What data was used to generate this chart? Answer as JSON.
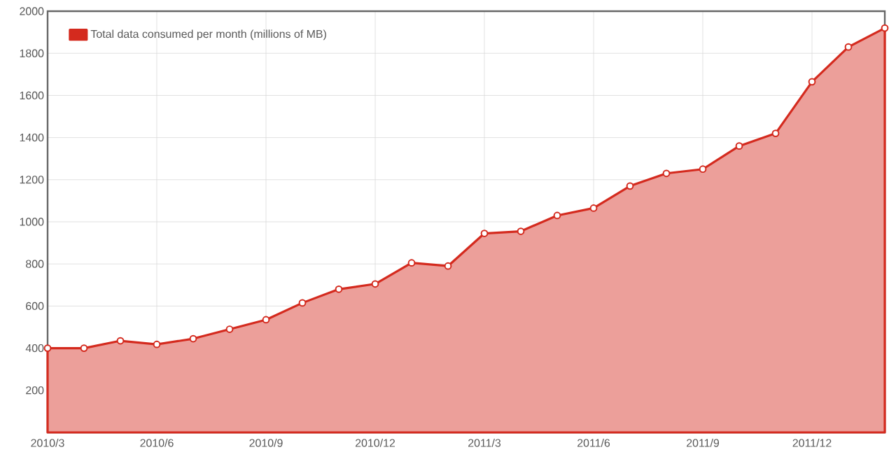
{
  "chart_data": {
    "type": "area",
    "x": [
      "2010-03",
      "2010-04",
      "2010-05",
      "2010-06",
      "2010-07",
      "2010-08",
      "2010-09",
      "2010-10",
      "2010-11",
      "2010-12",
      "2011-01",
      "2011-02",
      "2011-03",
      "2011-04",
      "2011-05",
      "2011-06",
      "2011-07",
      "2011-08",
      "2011-09",
      "2011-10",
      "2011-11",
      "2011-12",
      "2012-01",
      "2012-02"
    ],
    "series": [
      {
        "name": "Total data consumed per month (millions of MB)",
        "color": "#d42a1e",
        "values": [
          400,
          400,
          435,
          418,
          445,
          490,
          535,
          615,
          680,
          705,
          805,
          790,
          945,
          955,
          1030,
          1065,
          1170,
          1230,
          1250,
          1360,
          1420,
          1665,
          1830,
          1920
        ]
      }
    ],
    "xlim": [
      "2010-03",
      "2012-02"
    ],
    "xticks": [
      {
        "value": "2010-03",
        "label": "2010/3"
      },
      {
        "value": "2010-06",
        "label": "2010/6"
      },
      {
        "value": "2010-09",
        "label": "2010/9"
      },
      {
        "value": "2010-12",
        "label": "2010/12"
      },
      {
        "value": "2011-03",
        "label": "2011/3"
      },
      {
        "value": "2011-06",
        "label": "2011/6"
      },
      {
        "value": "2011-09",
        "label": "2011/9"
      },
      {
        "value": "2011-12",
        "label": "2011/12"
      }
    ],
    "ylim": [
      0,
      2000
    ],
    "yticks": [
      200,
      400,
      600,
      800,
      1000,
      1200,
      1400,
      1600,
      1800,
      2000
    ],
    "grid": true,
    "legend": "top left",
    "marker": "circle",
    "line_style": "solid"
  }
}
